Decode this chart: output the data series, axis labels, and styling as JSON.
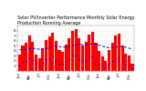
{
  "title": "Solar PV/Inverter Performance Monthly Solar Energy Production Running Average",
  "bar_values": [
    3.2,
    5.0,
    5.5,
    7.0,
    5.8,
    3.2,
    2.5,
    4.5,
    6.2,
    6.8,
    7.5,
    6.0,
    4.2,
    3.8,
    5.2,
    6.5,
    8.0,
    8.3,
    6.5,
    5.0,
    5.8,
    7.2,
    7.8,
    5.5,
    4.0,
    2.8,
    1.9,
    4.2,
    5.5,
    7.0,
    7.3,
    5.1,
    3.5,
    3.0,
    1.5
  ],
  "running_avg": [
    4.2,
    4.2,
    4.3,
    4.4,
    4.5,
    4.4,
    4.3,
    4.3,
    4.4,
    4.6,
    4.8,
    4.9,
    4.8,
    4.7,
    4.7,
    4.8,
    5.0,
    5.2,
    5.3,
    5.2,
    5.2,
    5.3,
    5.4,
    5.3,
    5.1,
    4.9,
    4.7,
    4.6,
    4.6,
    4.7,
    4.9,
    4.8,
    4.7,
    4.5,
    4.4
  ],
  "dot_values": [
    1.0,
    1.8,
    2.0,
    2.6,
    2.1,
    1.1,
    0.9,
    1.6,
    2.3,
    2.5,
    2.8,
    2.2,
    1.5,
    1.4,
    1.9,
    2.4,
    3.0,
    3.1,
    2.4,
    1.9,
    2.2,
    2.7,
    2.9,
    2.0,
    1.5,
    1.0,
    0.7,
    1.6,
    2.0,
    2.6,
    2.7,
    1.9,
    1.3,
    1.1,
    0.6
  ],
  "bar_color": "#ff0000",
  "dot_color": "#0000ff",
  "avg_color": "#0000dd",
  "ylim": [
    0,
    9
  ],
  "ytick_values": [
    1,
    2,
    3,
    4,
    5,
    6,
    7,
    8
  ],
  "background_color": "#ffffff",
  "grid_color": "#aaaaaa",
  "title_fontsize": 3.5,
  "tick_fontsize": 2.8,
  "bar_width": 0.85
}
